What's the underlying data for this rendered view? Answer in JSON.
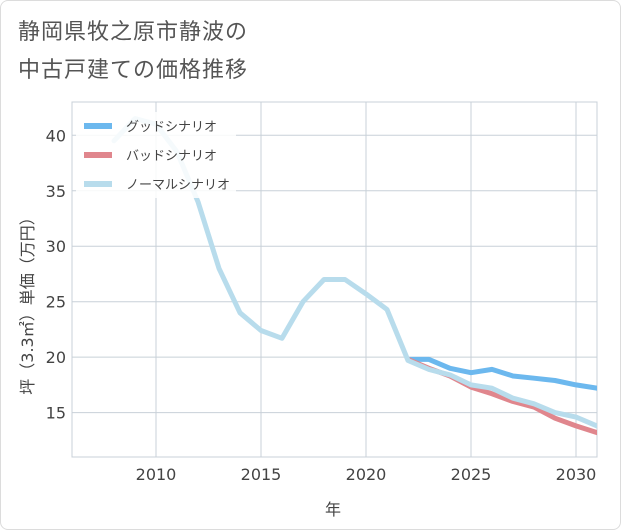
{
  "title_lines": [
    "静岡県牧之原市静波の",
    "中古戸建ての価格推移"
  ],
  "chart_data": {
    "type": "line",
    "xlabel": "年",
    "ylabel": "坪（3.3㎡）単価（万円）",
    "xlim": [
      2006,
      2031
    ],
    "ylim": [
      11,
      43
    ],
    "xticks": [
      2010,
      2015,
      2020,
      2025,
      2030
    ],
    "yticks": [
      15,
      20,
      25,
      30,
      35,
      40
    ],
    "grid": true,
    "legend_position": "top-left",
    "series": [
      {
        "name": "グッドシナリオ",
        "color": "#6cb8ee",
        "x": [
          2022,
          2023,
          2024,
          2025,
          2026,
          2027,
          2028,
          2029,
          2030,
          2031
        ],
        "y": [
          19.8,
          19.8,
          19.0,
          18.6,
          18.9,
          18.3,
          18.1,
          17.9,
          17.5,
          17.2
        ]
      },
      {
        "name": "バッドシナリオ",
        "color": "#e0868d",
        "x": [
          2022,
          2023,
          2024,
          2025,
          2026,
          2027,
          2028,
          2029,
          2030,
          2031
        ],
        "y": [
          19.8,
          19.0,
          18.3,
          17.3,
          16.7,
          16.0,
          15.5,
          14.5,
          13.8,
          13.2
        ]
      },
      {
        "name": "ノーマルシナリオ",
        "color": "#b8dcec",
        "x": [
          2008,
          2009,
          2010,
          2011,
          2012,
          2013,
          2014,
          2015,
          2016,
          2017,
          2018,
          2019,
          2020,
          2021,
          2022,
          2023,
          2024,
          2025,
          2026,
          2027,
          2028,
          2029,
          2030,
          2031
        ],
        "y": [
          39.5,
          41.5,
          41.0,
          38.5,
          34.0,
          28.0,
          24.0,
          22.4,
          21.7,
          25.0,
          27.0,
          27.0,
          25.7,
          24.3,
          19.7,
          18.9,
          18.4,
          17.5,
          17.2,
          16.3,
          15.8,
          15.0,
          14.6,
          13.8
        ]
      }
    ]
  }
}
